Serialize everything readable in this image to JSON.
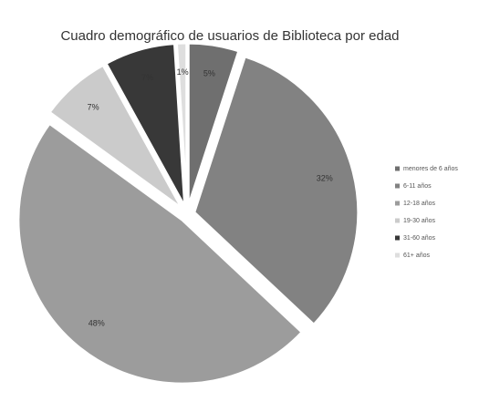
{
  "chart_data": {
    "type": "pie",
    "title": "Cuadro demográfico de usuarios de Biblioteca por edad",
    "categories": [
      "menores de 6 años",
      "6-11 años",
      "12-18 años",
      "19-30 años",
      "31-60 años",
      "61+ años"
    ],
    "values": [
      5,
      32,
      48,
      7,
      7,
      1
    ],
    "value_labels": [
      "5%",
      "32%",
      "48%",
      "7%",
      "7%",
      "1%"
    ],
    "colors": [
      "#6f6f6f",
      "#828282",
      "#9c9c9c",
      "#cbcbcb",
      "#383838",
      "#dedede"
    ],
    "legend": "right"
  }
}
